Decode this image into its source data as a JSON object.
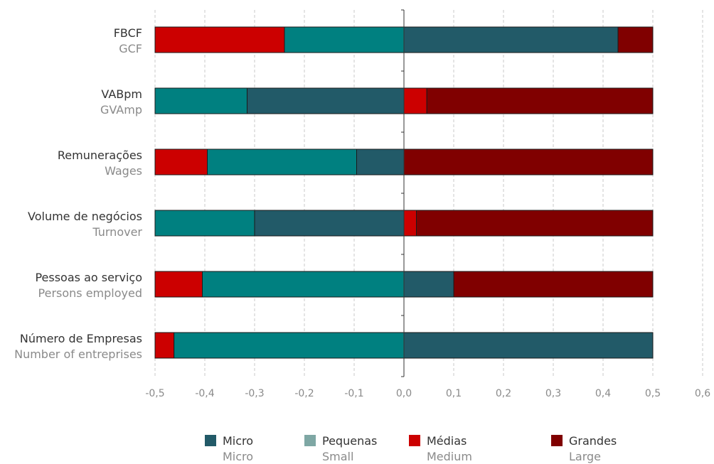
{
  "chart_data": {
    "type": "bar",
    "orientation": "horizontal",
    "stacking": "diverging",
    "categories": [
      {
        "label": "FBCF",
        "sublabel": "GCF"
      },
      {
        "label": "VABpm",
        "sublabel": "GVAmp"
      },
      {
        "label": "Remunerações",
        "sublabel": "Wages"
      },
      {
        "label": "Volume de negócios",
        "sublabel": "Turnover"
      },
      {
        "label": "Pessoas ao serviço",
        "sublabel": "Persons employed"
      },
      {
        "label": "Número de Empresas",
        "sublabel": "Number of entreprises"
      }
    ],
    "series": [
      {
        "name": "Micro",
        "subname": "Micro",
        "color": "#225a68",
        "segments": [
          [
            0,
            0.43
          ],
          [
            -0.315,
            0
          ],
          [
            -0.095,
            0
          ],
          [
            -0.3,
            0
          ],
          [
            0,
            0.1
          ],
          [
            0,
            0.5
          ]
        ]
      },
      {
        "name": "Pequenas",
        "subname": "Small",
        "color": "#008080",
        "legend_color": "#7ea7a4",
        "segments": [
          [
            -0.24,
            0
          ],
          [
            -0.5,
            -0.315
          ],
          [
            -0.395,
            -0.095
          ],
          [
            -0.5,
            -0.3
          ],
          [
            -0.405,
            0
          ],
          [
            -0.462,
            0
          ]
        ]
      },
      {
        "name": "Médias",
        "subname": "Medium",
        "color": "#cc0000",
        "segments": [
          [
            -0.5,
            -0.24
          ],
          [
            0,
            0.046
          ],
          [
            -0.5,
            -0.395
          ],
          [
            0,
            0.025
          ],
          [
            -0.5,
            -0.405
          ],
          [
            -0.5,
            -0.462
          ]
        ]
      },
      {
        "name": "Grandes",
        "subname": "Large",
        "color": "#800000",
        "segments": [
          [
            0.43,
            0.5
          ],
          [
            0.046,
            0.5
          ],
          [
            0,
            0.5
          ],
          [
            0.025,
            0.5
          ],
          [
            0.1,
            0.5
          ],
          null
        ]
      }
    ],
    "xlim": [
      -0.5,
      0.6
    ],
    "xticks": [
      "-0,5",
      "-0,4",
      "-0,3",
      "-0,2",
      "-0,1",
      "0,0",
      "0,1",
      "0,2",
      "0,3",
      "0,4",
      "0,5",
      "0,6"
    ],
    "grid": true,
    "legend": "bottom"
  }
}
